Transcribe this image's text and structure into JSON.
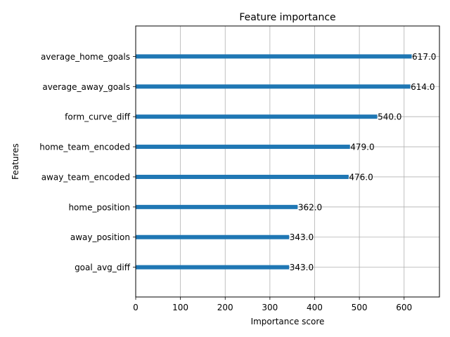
{
  "chart_data": {
    "type": "bar",
    "orientation": "horizontal",
    "title": "Feature importance",
    "xlabel": "Importance score",
    "ylabel": "Features",
    "categories": [
      "average_home_goals",
      "average_away_goals",
      "form_curve_diff",
      "home_team_encoded",
      "away_team_encoded",
      "home_position",
      "away_position",
      "goal_avg_diff"
    ],
    "values": [
      617.0,
      614.0,
      540.0,
      479.0,
      476.0,
      362.0,
      343.0,
      343.0
    ],
    "value_labels": [
      "617.0",
      "614.0",
      "540.0",
      "479.0",
      "476.0",
      "362.0",
      "343.0",
      "343.0"
    ],
    "xlim": [
      0,
      679
    ],
    "xticks": [
      0,
      100,
      200,
      300,
      400,
      500,
      600
    ],
    "grid": true,
    "bar_color": "#1f77b4"
  }
}
